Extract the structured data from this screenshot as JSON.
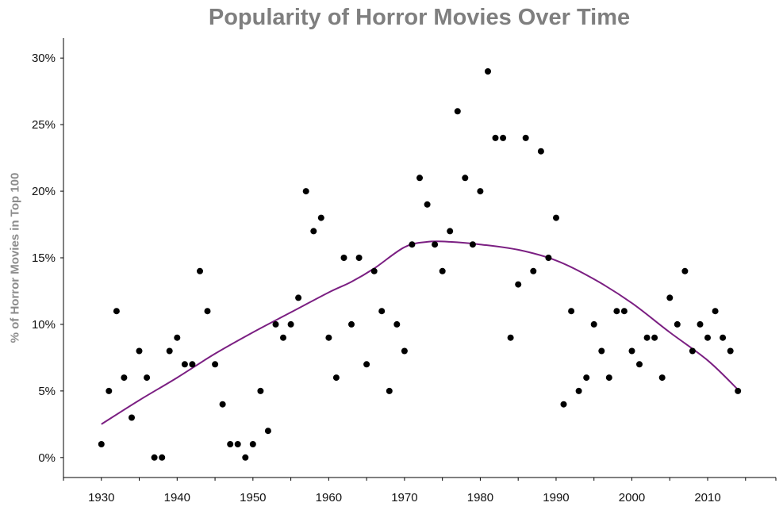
{
  "chart_data": {
    "type": "scatter",
    "title": "Popularity of Horror Movies Over Time",
    "xlabel": "",
    "ylabel": "% of Horror Movies in Top 100",
    "xlim": [
      1925,
      2019
    ],
    "ylim": [
      -1.5,
      31.5
    ],
    "x_ticks": [
      1930,
      1940,
      1950,
      1960,
      1970,
      1980,
      1990,
      2000,
      2010
    ],
    "x_tick_labels": [
      "1930",
      "1940",
      "1950",
      "1960",
      "1970",
      "1980",
      "1990",
      "2000",
      "2010"
    ],
    "y_ticks": [
      0,
      5,
      10,
      15,
      20,
      25,
      30
    ],
    "y_tick_labels": [
      "0%",
      "5%",
      "10%",
      "15%",
      "20%",
      "25%",
      "30%"
    ],
    "grid": false,
    "legend": "none",
    "marker_color": "#000000",
    "trend_color": "#7b1f82",
    "series": [
      {
        "type": "scatter",
        "x": [
          1930,
          1931,
          1932,
          1933,
          1934,
          1935,
          1936,
          1937,
          1938,
          1939,
          1940,
          1941,
          1942,
          1943,
          1944,
          1945,
          1946,
          1947,
          1948,
          1949,
          1950,
          1951,
          1952,
          1953,
          1954,
          1955,
          1956,
          1957,
          1958,
          1959,
          1960,
          1961,
          1962,
          1963,
          1964,
          1965,
          1966,
          1967,
          1968,
          1969,
          1970,
          1971,
          1972,
          1973,
          1974,
          1975,
          1976,
          1977,
          1978,
          1979,
          1980,
          1981,
          1982,
          1983,
          1984,
          1985,
          1986,
          1987,
          1988,
          1989,
          1990,
          1991,
          1992,
          1993,
          1994,
          1995,
          1996,
          1997,
          1998,
          1999,
          2000,
          2001,
          2002,
          2003,
          2004,
          2005,
          2006,
          2007,
          2008,
          2009,
          2010,
          2011,
          2012,
          2013,
          2014
        ],
        "y": [
          1,
          5,
          11,
          6,
          3,
          8,
          6,
          0,
          0,
          8,
          9,
          7,
          7,
          14,
          11,
          7,
          4,
          1,
          1,
          0,
          1,
          5,
          2,
          10,
          9,
          10,
          12,
          20,
          17,
          18,
          9,
          6,
          15,
          10,
          15,
          7,
          14,
          11,
          5,
          10,
          8,
          16,
          21,
          19,
          16,
          14,
          17,
          26,
          21,
          16,
          20,
          29,
          24,
          24,
          9,
          13,
          24,
          14,
          23,
          15,
          18,
          4,
          11,
          5,
          6,
          10,
          8,
          6,
          11,
          11,
          8,
          7,
          9,
          9,
          6,
          12,
          10,
          14,
          8,
          10,
          9,
          11,
          9,
          8,
          5
        ]
      },
      {
        "type": "line",
        "x": [
          1930,
          1935,
          1940,
          1945,
          1950,
          1955,
          1960,
          1963,
          1966,
          1970,
          1973,
          1976,
          1980,
          1985,
          1990,
          1995,
          2000,
          2005,
          2010,
          2014
        ],
        "y": [
          2.5,
          4.3,
          6.0,
          7.8,
          9.4,
          10.9,
          12.4,
          13.2,
          14.2,
          15.8,
          16.2,
          16.2,
          16.0,
          15.6,
          14.8,
          13.4,
          11.6,
          9.4,
          7.3,
          5.1
        ]
      }
    ]
  }
}
